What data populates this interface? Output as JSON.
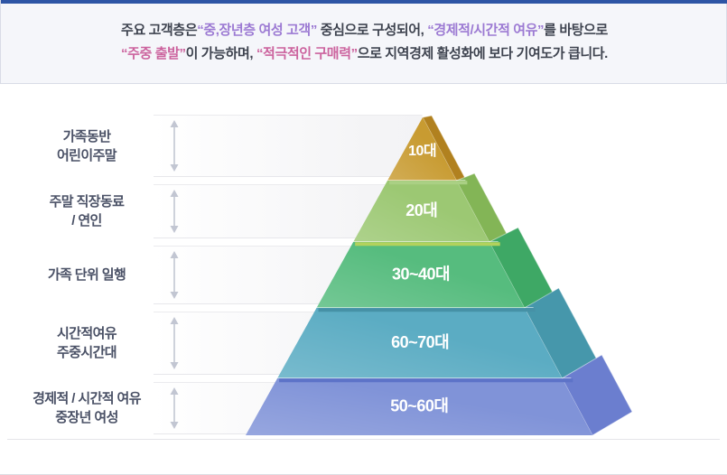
{
  "header": {
    "accent_color": "#2e55a5",
    "background_color": "#f5f6fa",
    "colors": {
      "default": "#3f4450",
      "purple": "#9c7ad3",
      "pink": "#cc639e"
    },
    "line1": [
      {
        "text": "주요 고객층은",
        "style": "default"
      },
      {
        "text": "“중,장년층 여성 고객”",
        "style": "purple"
      },
      {
        "text": " 중심으로 구성되어, ",
        "style": "default"
      },
      {
        "text": "“경제적/시간적 여유”",
        "style": "purple"
      },
      {
        "text": "를 바탕으로",
        "style": "default"
      }
    ],
    "line2": [
      {
        "text": "“주중 출발”",
        "style": "pink"
      },
      {
        "text": "이 가능하며, ",
        "style": "default"
      },
      {
        "text": "“적극적인 구매력”",
        "style": "pink"
      },
      {
        "text": "으로 지역경제 활성화에 보다 기여도가 큽니다.",
        "style": "default"
      }
    ]
  },
  "chart_data": {
    "type": "pyramid",
    "row_label_color": "#4a5166",
    "level_label_color": "#ffffff",
    "arrow_color": "#c2c6d2",
    "baseline_color": "#e4e4e8",
    "levels": [
      {
        "rank": 1,
        "age_group": "10대",
        "audience": "가족동반 어린이주말",
        "audience_lines": [
          "가족동반",
          "어린이주말"
        ],
        "front_color": "#c89b31",
        "side_color": "#b1811f",
        "rim_color": null
      },
      {
        "rank": 2,
        "age_group": "20대",
        "audience": "주말 직장동료 / 연인",
        "audience_lines": [
          "주말 직장동료",
          "/ 연인"
        ],
        "front_color": "#9cc873",
        "side_color": "#83b556",
        "rim_color": "#aad084"
      },
      {
        "rank": 3,
        "age_group": "30~40대",
        "audience": "가족 단위 일행",
        "audience_lines": [
          "가족 단위 일행"
        ],
        "front_color": "#56bc7e",
        "side_color": "#3ea865",
        "rim_color": "#b2d25c"
      },
      {
        "rank": 4,
        "age_group": "60~70대",
        "audience": "시간적여유 주중시간대",
        "audience_lines": [
          "시간적여유",
          "주중시간대"
        ],
        "front_color": "#5bacc3",
        "side_color": "#4697ab",
        "rim_color": "#4691a6"
      },
      {
        "rank": 5,
        "age_group": "50~60대",
        "audience": "경제적 / 시간적 여유 중장년 여성",
        "audience_lines": [
          "경제적 / 시간적 여유",
          "중장년 여성"
        ],
        "front_color": "#8093d8",
        "side_color": "#6b7ecf",
        "rim_color": "#5d73c8"
      }
    ]
  }
}
